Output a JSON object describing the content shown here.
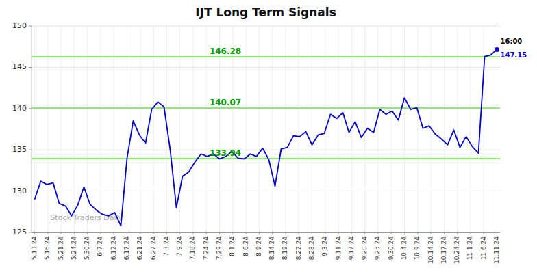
{
  "chart_data": {
    "type": "line",
    "title": "IJT Long Term Signals",
    "color": "#0000cc",
    "values": [
      129.0,
      131.2,
      130.8,
      131.0,
      128.5,
      128.2,
      127.0,
      128.3,
      130.5,
      128.4,
      127.7,
      127.2,
      127.0,
      127.4,
      125.8,
      134.0,
      138.5,
      136.8,
      135.8,
      139.9,
      140.8,
      140.2,
      135.0,
      128.0,
      131.8,
      132.3,
      133.5,
      134.5,
      134.2,
      134.5,
      133.9,
      134.2,
      134.8,
      134.0,
      133.9,
      134.5,
      134.2,
      135.2,
      133.8,
      130.6,
      135.1,
      135.3,
      136.7,
      136.6,
      137.2,
      135.6,
      136.8,
      137.0,
      139.3,
      138.8,
      139.5,
      137.1,
      138.4,
      136.5,
      137.6,
      137.1,
      139.9,
      139.3,
      139.7,
      138.6,
      141.3,
      139.9,
      140.1,
      137.6,
      137.9,
      136.9,
      136.3,
      135.6,
      137.4,
      135.3,
      136.6,
      135.4,
      134.6,
      146.3,
      146.5,
      147.15
    ],
    "xlim": [
      -0.5,
      75.5
    ],
    "xticks": [
      {
        "value": 0,
        "label": "5.13.24"
      },
      {
        "value": 2.142857142857143,
        "label": "5.16.24"
      },
      {
        "value": 4.285714285714286,
        "label": "5.21.24"
      },
      {
        "value": 6.428571428571429,
        "label": "5.24.24"
      },
      {
        "value": 8.571428571428571,
        "label": "5.30.24"
      },
      {
        "value": 10.714285714285714,
        "label": "6.7.24"
      },
      {
        "value": 12.857142857142858,
        "label": "6.12.24"
      },
      {
        "value": 15,
        "label": "6.17.24"
      },
      {
        "value": 17.142857142857142,
        "label": "6.21.24"
      },
      {
        "value": 19.285714285714285,
        "label": "6.27.24"
      },
      {
        "value": 21.428571428571427,
        "label": "7.3.24"
      },
      {
        "value": 23.571428571428573,
        "label": "7.9.24"
      },
      {
        "value": 25.714285714285715,
        "label": "7.18.24"
      },
      {
        "value": 27.857142857142858,
        "label": "7.24.24"
      },
      {
        "value": 30,
        "label": "7.29.24"
      },
      {
        "value": 32.14285714285714,
        "label": "8.1.24"
      },
      {
        "value": 34.28571428571429,
        "label": "8.6.24"
      },
      {
        "value": 36.42857142857143,
        "label": "8.9.24"
      },
      {
        "value": 38.57142857142857,
        "label": "8.14.24"
      },
      {
        "value": 40.714285714285715,
        "label": "8.19.24"
      },
      {
        "value": 42.857142857142854,
        "label": "8.22.24"
      },
      {
        "value": 45,
        "label": "8.28.24"
      },
      {
        "value": 47.142857142857146,
        "label": "9.3.24"
      },
      {
        "value": 49.285714285714285,
        "label": "9.11.24"
      },
      {
        "value": 51.42857142857143,
        "label": "9.17.24"
      },
      {
        "value": 53.57142857142857,
        "label": "9.20.24"
      },
      {
        "value": 55.714285714285715,
        "label": "9.25.24"
      },
      {
        "value": 57.857142857142854,
        "label": "9.30.24"
      },
      {
        "value": 60,
        "label": "10.4.24"
      },
      {
        "value": 62.142857142857146,
        "label": "10.9.24"
      },
      {
        "value": 64.28571428571429,
        "label": "10.14.24"
      },
      {
        "value": 66.42857142857143,
        "label": "10.17.24"
      },
      {
        "value": 68.57142857142857,
        "label": "10.24.24"
      },
      {
        "value": 70.71428571428571,
        "label": "11.1.24"
      },
      {
        "value": 72.85714285714286,
        "label": "11.6.24"
      },
      {
        "value": 75,
        "label": "11.11.24"
      }
    ],
    "ylim": [
      125,
      150
    ],
    "yticks": [
      125,
      130,
      135,
      140,
      145,
      150
    ],
    "grid": true,
    "reference_lines": [
      {
        "value": 146.28,
        "label": "146.28",
        "color": "#88ee66"
      },
      {
        "value": 140.07,
        "label": "140.07",
        "color": "#88ee66"
      },
      {
        "value": 133.94,
        "label": "133.94",
        "color": "#88ee66"
      }
    ],
    "endpoint_label": "16:00",
    "watermark": "Stock Traders Daily"
  }
}
